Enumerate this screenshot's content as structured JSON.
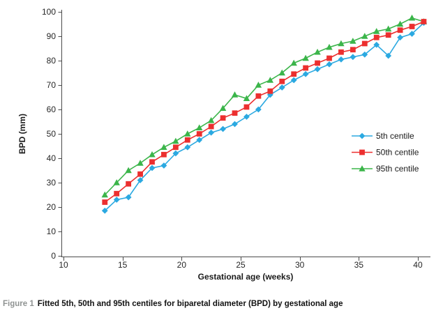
{
  "caption": {
    "label": "Figure 1",
    "text": "Fitted 5th, 50th and 95th centiles for biparetal diameter (BPD) by gestational age"
  },
  "chart_data": {
    "type": "line",
    "title": "",
    "xlabel": "Gestational age (weeks)",
    "ylabel": "BPD (mm)",
    "xlim": [
      10,
      41
    ],
    "ylim": [
      0,
      100
    ],
    "x_ticks": [
      10,
      15,
      20,
      25,
      30,
      35,
      40
    ],
    "y_ticks": [
      0,
      10,
      20,
      30,
      40,
      50,
      60,
      70,
      80,
      90,
      100
    ],
    "grid": false,
    "legend_position": "inside-right-middle",
    "x": [
      13.5,
      14.5,
      15.5,
      16.5,
      17.5,
      18.5,
      19.5,
      20.5,
      21.5,
      22.5,
      23.5,
      24.5,
      25.5,
      26.5,
      27.5,
      28.5,
      29.5,
      30.5,
      31.5,
      32.5,
      33.5,
      34.5,
      35.5,
      36.5,
      37.5,
      38.5,
      39.5,
      40.5
    ],
    "series": [
      {
        "name": "5th centile",
        "marker": "diamond",
        "color": "#2BA9E1",
        "values": [
          18.5,
          23,
          24,
          31,
          36,
          37,
          42,
          44.5,
          47.5,
          50.5,
          52,
          54,
          57,
          60,
          66,
          69,
          72,
          74.5,
          76.5,
          78.5,
          80.5,
          81.5,
          82.5,
          86.5,
          82,
          89.5,
          91,
          95.5
        ]
      },
      {
        "name": "50th centile",
        "marker": "square",
        "color": "#EC2F2F",
        "values": [
          22,
          25.5,
          29.5,
          33.5,
          38.5,
          41.5,
          44.5,
          47.5,
          50,
          53,
          56.5,
          58.5,
          61,
          65.5,
          67.5,
          71.5,
          74.5,
          77,
          79,
          81,
          83.5,
          84.5,
          87,
          89.5,
          90.5,
          92.5,
          94,
          96
        ]
      },
      {
        "name": "95th centile",
        "marker": "triangle",
        "color": "#3BB54A",
        "values": [
          25,
          30,
          35,
          38,
          41.5,
          44.5,
          47,
          50,
          52.5,
          55.5,
          60.5,
          66,
          64.5,
          70,
          72,
          75,
          79,
          81,
          83.5,
          85.5,
          87,
          88,
          90,
          92,
          93,
          95,
          97.5,
          96
        ]
      }
    ]
  }
}
